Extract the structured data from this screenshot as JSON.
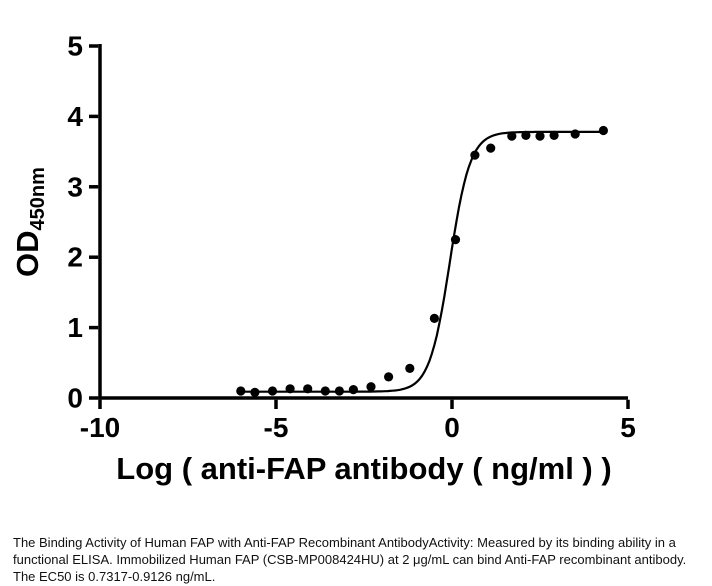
{
  "figure": {
    "background": "#ffffff"
  },
  "chart_data": {
    "type": "scatter",
    "title": "",
    "xlabel": "Log ( anti-FAP antibody ( ng/ml )  )",
    "ylabel_main": "OD",
    "ylabel_sub": "450nm",
    "xlim": [
      -10,
      5
    ],
    "ylim": [
      0,
      5
    ],
    "xticks": [
      -10,
      -5,
      0,
      5
    ],
    "yticks": [
      0,
      1,
      2,
      3,
      4,
      5
    ],
    "grid": false,
    "legend": "none",
    "marker_color": "#000000",
    "line_color": "#000000",
    "points": [
      [
        -6.0,
        0.1
      ],
      [
        -5.6,
        0.08
      ],
      [
        -5.1,
        0.1
      ],
      [
        -4.6,
        0.13
      ],
      [
        -4.1,
        0.13
      ],
      [
        -3.6,
        0.1
      ],
      [
        -3.2,
        0.1
      ],
      [
        -2.8,
        0.12
      ],
      [
        -2.3,
        0.16
      ],
      [
        -1.8,
        0.3
      ],
      [
        -1.2,
        0.42
      ],
      [
        -0.5,
        1.13
      ],
      [
        0.1,
        2.25
      ],
      [
        0.65,
        3.45
      ],
      [
        1.1,
        3.55
      ],
      [
        1.7,
        3.72
      ],
      [
        2.1,
        3.73
      ],
      [
        2.5,
        3.72
      ],
      [
        2.9,
        3.73
      ],
      [
        3.5,
        3.75
      ],
      [
        4.3,
        3.8
      ]
    ],
    "fit_curve": {
      "model": "4PL",
      "bottom": 0.09,
      "top": 3.78,
      "log_ec50": -0.06,
      "hill_slope": 1.5,
      "x_start": -6.1,
      "x_end": 4.35
    }
  },
  "caption": {
    "text": "The Binding Activity of Human FAP with Anti-FAP Recombinant AntibodyActivity: Measured by its binding ability in a functional ELISA. Immobilized Human FAP (CSB-MP008424HU) at 2 μg/mL can bind Anti-FAP recombinant antibody. The EC50 is 0.7317-0.9126 ng/mL."
  }
}
